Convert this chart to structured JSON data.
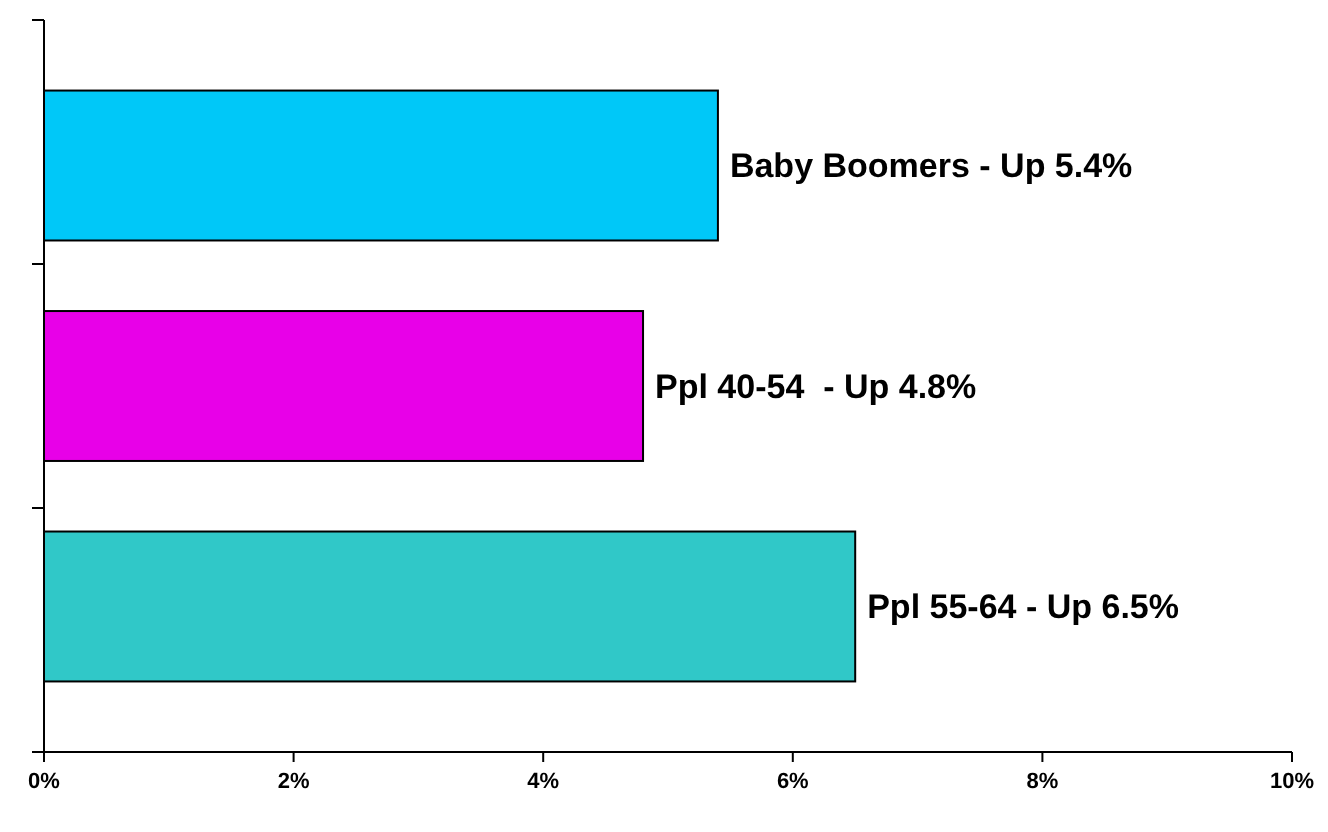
{
  "chart_data": {
    "type": "bar",
    "orientation": "horizontal",
    "categories": [
      "Baby Boomers - Up 5.4%",
      "Ppl 40-54  - Up 4.8%",
      "Ppl 55-64 - Up 6.5%"
    ],
    "values": [
      5.4,
      4.8,
      6.5
    ],
    "colors": [
      "#00c8f8",
      "#e800e8",
      "#30c8c8"
    ],
    "xlim": [
      0,
      10
    ],
    "xticks": [
      {
        "value": 0,
        "label": "0%"
      },
      {
        "value": 2,
        "label": "2%"
      },
      {
        "value": 4,
        "label": "4%"
      },
      {
        "value": 6,
        "label": "6%"
      },
      {
        "value": 8,
        "label": "8%"
      },
      {
        "value": 10,
        "label": "10%"
      }
    ],
    "tick_labels": "x"
  }
}
